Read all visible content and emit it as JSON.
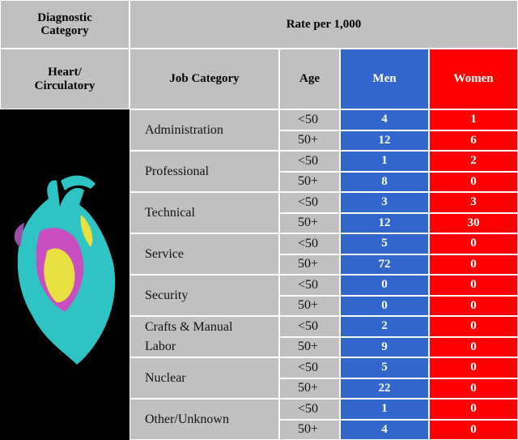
{
  "header": {
    "diagnostic_category": "Diagnostic Category",
    "rate": "Rate per 1,000"
  },
  "subheader": {
    "category": "Heart/ Circulatory",
    "job_category": "Job Category",
    "age": "Age",
    "men": "Men",
    "women": "Women"
  },
  "groups": [
    {
      "job": "Administration",
      "rows": [
        {
          "age": "<50",
          "men": 4,
          "women": 1
        },
        {
          "age": "50+",
          "men": 12,
          "women": 6
        }
      ]
    },
    {
      "job": "Professional",
      "rows": [
        {
          "age": "<50",
          "men": 1,
          "women": 2
        },
        {
          "age": "50+",
          "men": 8,
          "women": 0
        }
      ]
    },
    {
      "job": "Technical",
      "rows": [
        {
          "age": "<50",
          "men": 3,
          "women": 3
        },
        {
          "age": "50+",
          "men": 12,
          "women": 30
        }
      ]
    },
    {
      "job": "Service",
      "rows": [
        {
          "age": "<50",
          "men": 5,
          "women": 0
        },
        {
          "age": "50+",
          "men": 72,
          "women": 0
        }
      ]
    },
    {
      "job": "Security",
      "rows": [
        {
          "age": "<50",
          "men": 0,
          "women": 0
        },
        {
          "age": "50+",
          "men": 0,
          "women": 0
        }
      ]
    },
    {
      "job": "Crafts & Manual Labor",
      "rows": [
        {
          "age": "<50",
          "men": 2,
          "women": 0
        },
        {
          "age": "50+",
          "men": 9,
          "women": 0
        }
      ]
    },
    {
      "job": "Nuclear",
      "rows": [
        {
          "age": "<50",
          "men": 5,
          "women": 0
        },
        {
          "age": "50+",
          "men": 22,
          "women": 0
        }
      ]
    },
    {
      "job": "Other/Unknown",
      "rows": [
        {
          "age": "<50",
          "men": 1,
          "women": 0
        },
        {
          "age": "50+",
          "men": 4,
          "women": 0
        }
      ]
    }
  ]
}
